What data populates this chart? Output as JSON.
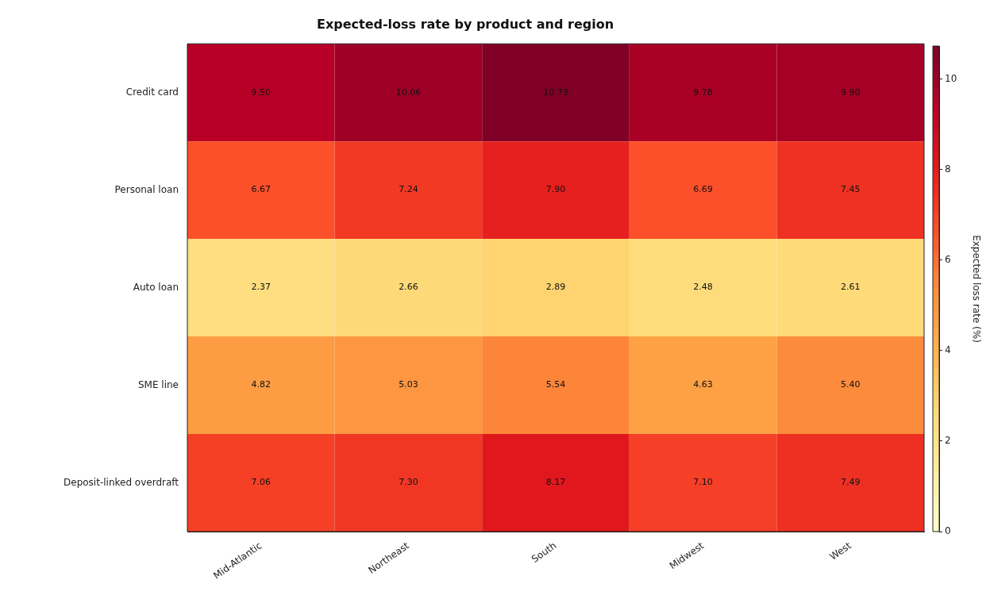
{
  "chart_data": {
    "type": "heatmap",
    "title": "Expected-loss rate by product and region",
    "categories": [
      "Mid-Atlantic",
      "Northeast",
      "South",
      "Midwest",
      "West"
    ],
    "y_categories": [
      "Credit card",
      "Personal loan",
      "Auto loan",
      "SME line",
      "Deposit-linked overdraft"
    ],
    "cells": [
      [
        9.5,
        10.06,
        10.73,
        9.78,
        9.9
      ],
      [
        6.67,
        7.24,
        7.9,
        6.69,
        7.45
      ],
      [
        2.37,
        2.66,
        2.89,
        2.48,
        2.61
      ],
      [
        4.82,
        5.03,
        5.54,
        4.63,
        5.4
      ],
      [
        7.06,
        7.3,
        8.17,
        7.1,
        7.49
      ]
    ],
    "cell_labels": [
      [
        "9.50",
        "10.06",
        "10.73",
        "9.78",
        "9.90"
      ],
      [
        "6.67",
        "7.24",
        "7.90",
        "6.69",
        "7.45"
      ],
      [
        "2.37",
        "2.66",
        "2.89",
        "2.48",
        "2.61"
      ],
      [
        "4.82",
        "5.03",
        "5.54",
        "4.63",
        "5.40"
      ],
      [
        "7.06",
        "7.30",
        "8.17",
        "7.10",
        "7.49"
      ]
    ],
    "clabel": "Expected loss rate (%)",
    "clim": [
      0,
      10.73
    ],
    "cticks": [
      0,
      2,
      4,
      6,
      8,
      10
    ]
  }
}
